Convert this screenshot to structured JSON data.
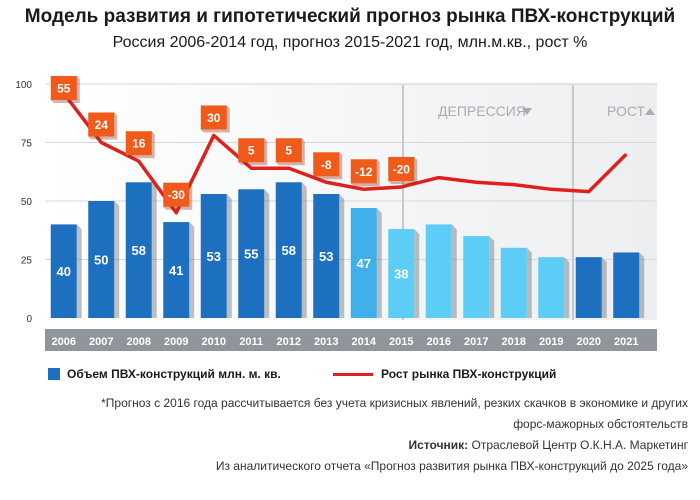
{
  "title": "Модель развития и гипотетический прогноз рынка ПВХ-конструкций",
  "subtitle": "Россия 2006-2014 год, прогноз 2015-2021 год, млн.м.кв., рост %",
  "zones": {
    "depression": "ДЕПРЕССИЯ",
    "growth": "РОСТ"
  },
  "legend": {
    "bars": "Объем ПВХ-конструкций млн. м. кв.",
    "line": "Рост рынка ПВХ-конструкций"
  },
  "notes": {
    "line1": "*Прогноз с 2016 года рассчитывается без учета кризисных явлений, резких скачков в экономике и других",
    "line2": "форс-мажорных обстоятельств",
    "source_label": "Источник:",
    "source_text": " Отраслевой Центр О.К.Н.А. Маркетинг",
    "line4": "Из аналитического отчета «Прогноз развития рынка ПВХ-конструкций до 2025 года»"
  },
  "colors": {
    "bar_hist": "#1d6fc0",
    "bar_hist_2014": "#3fb0ea",
    "bar_forecast": "#5ccdf6",
    "bar_2020s": "#1d6fc0",
    "line": "#e0211b",
    "badge": "#f05a1a"
  },
  "chart_data": {
    "type": "bar",
    "categories": [
      "2006",
      "2007",
      "2008",
      "2009",
      "2010",
      "2011",
      "2012",
      "2013",
      "2014",
      "2015",
      "2016",
      "2017",
      "2018",
      "2019",
      "2020",
      "2021"
    ],
    "ylim": [
      0,
      100
    ],
    "yticks": [
      0,
      25,
      50,
      75,
      100
    ],
    "grid": true,
    "legend_position": "bottom",
    "series": [
      {
        "name": "Объем ПВХ-конструкций млн. м. кв.",
        "type": "bar",
        "values": [
          40,
          50,
          58,
          41,
          53,
          55,
          58,
          53,
          47,
          38,
          40,
          35,
          30,
          26,
          26,
          28
        ],
        "labels": [
          "40",
          "50",
          "58",
          "41",
          "53",
          "55",
          "58",
          "53",
          "47",
          "38",
          "",
          "",
          "",
          "",
          "",
          ""
        ]
      },
      {
        "name": "Рост рынка ПВХ-конструкций",
        "type": "line",
        "values": [
          96,
          75,
          67,
          45,
          78,
          64,
          64,
          58,
          55,
          56,
          60,
          58,
          57,
          55,
          54,
          70
        ],
        "labels": [
          "55",
          "24",
          "16",
          "-30",
          "30",
          "5",
          "5",
          "-8",
          "-12",
          "-20",
          "",
          "",
          "",
          "",
          "",
          ""
        ]
      }
    ]
  }
}
